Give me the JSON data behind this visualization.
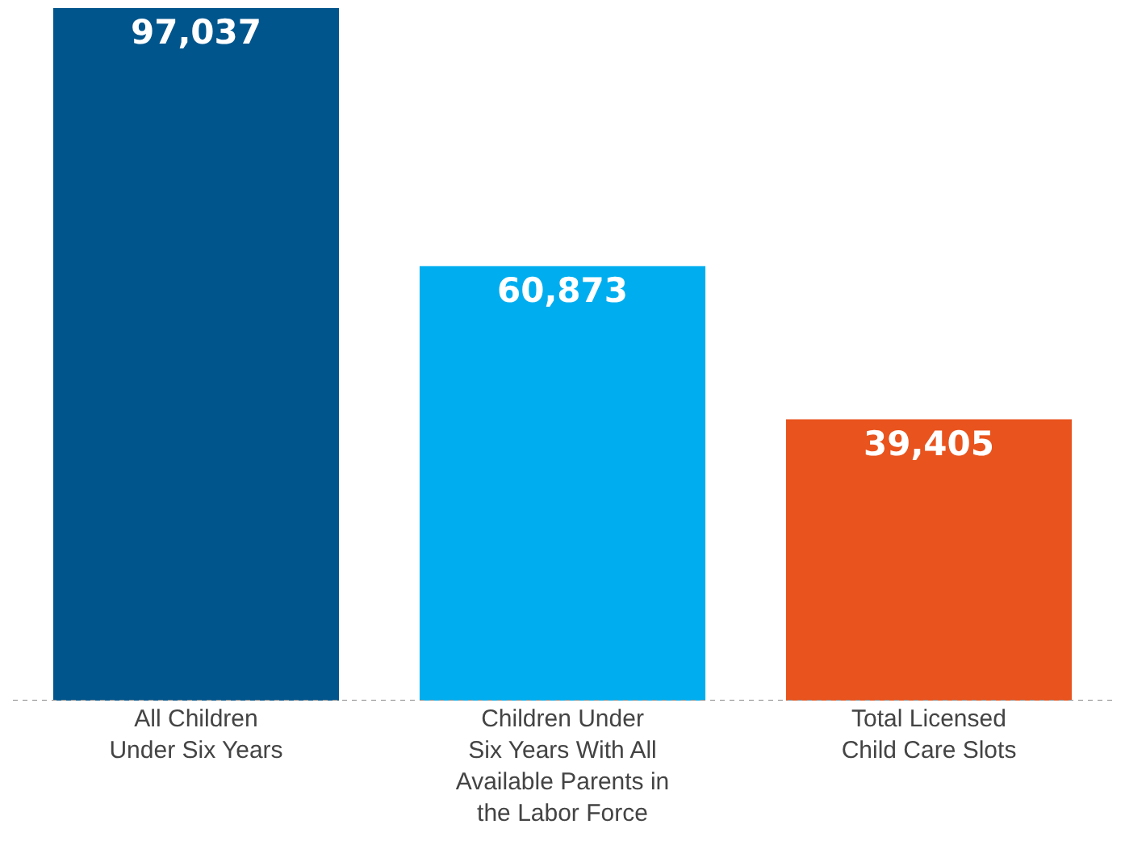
{
  "chart_data": {
    "type": "bar",
    "categories": [
      "All Children\nUnder Six Years",
      "Children Under\nSix Years With All\nAvailable Parents in\nthe Labor Force",
      "Total Licensed\nChild Care Slots"
    ],
    "values": [
      97037,
      60873,
      39405
    ],
    "colors": [
      "#00558c",
      "#00aeef",
      "#e9531d"
    ],
    "value_labels": [
      "97,037",
      "60,873",
      "39,405"
    ],
    "legend": false,
    "tick_labels": "x"
  }
}
